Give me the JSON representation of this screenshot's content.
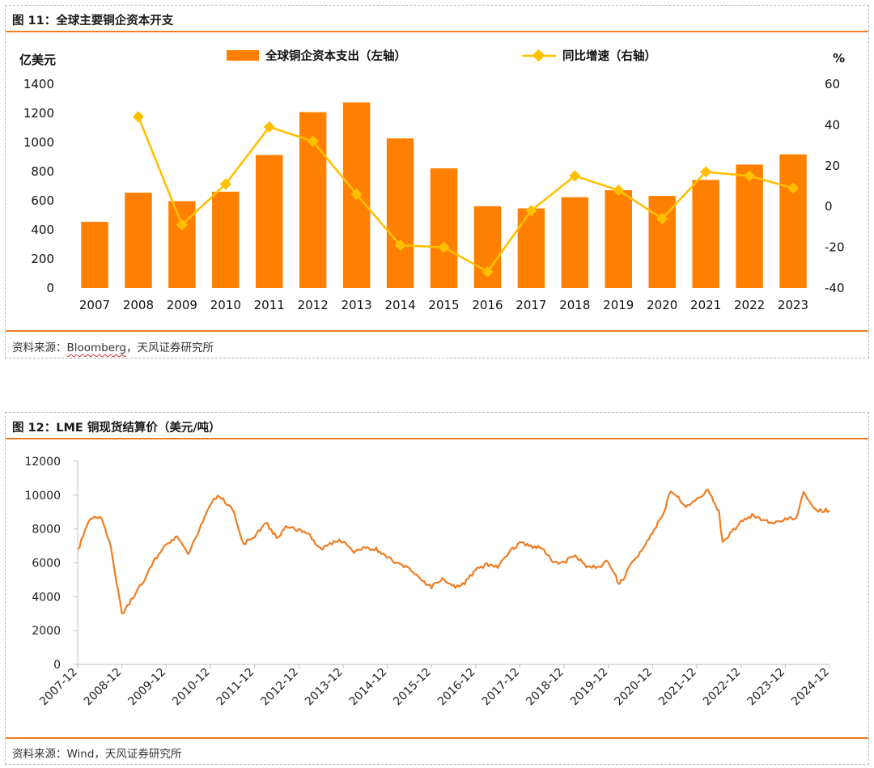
{
  "figure1": {
    "title": "图 11：全球主要铜企资本开支",
    "source_prefix": "资料来源：",
    "source_name": "Bloomberg",
    "source_suffix": "，天风证券研究所",
    "chart_data": {
      "type": "bar",
      "categories": [
        "2007",
        "2008",
        "2009",
        "2010",
        "2011",
        "2012",
        "2013",
        "2014",
        "2015",
        "2016",
        "2017",
        "2018",
        "2019",
        "2020",
        "2021",
        "2022",
        "2023"
      ],
      "series": [
        {
          "name": "全球铜企资本支出（左轴）",
          "type": "bar",
          "axis": "left",
          "values": [
            455,
            655,
            597,
            662,
            914,
            1208,
            1275,
            1028,
            822,
            562,
            547,
            624,
            672,
            633,
            743,
            848,
            918
          ]
        },
        {
          "name": "同比增速（右轴）",
          "type": "line",
          "axis": "right",
          "values": [
            null,
            44,
            -9,
            11,
            39,
            32,
            6,
            -19,
            -20,
            -32,
            -2,
            15,
            8,
            -6,
            17,
            15,
            9
          ]
        }
      ],
      "ylabel_left": "亿美元",
      "ylabel_right": "%",
      "ylim_left": [
        0,
        1400
      ],
      "ylim_right": [
        -40,
        60
      ],
      "yticks_left": [
        "0",
        "200",
        "400",
        "600",
        "800",
        "1000",
        "1200",
        "1400"
      ],
      "yticks_right": [
        "-40",
        "-20",
        "0",
        "20",
        "40",
        "60"
      ],
      "legend": "top",
      "grid": false,
      "colors": {
        "bar": "#ff8000",
        "line": "#ffc000"
      }
    }
  },
  "figure2": {
    "title": "图 12：LME 铜现货结算价（美元/吨）",
    "source": "资料来源：Wind，天风证券研究所",
    "chart_data": {
      "type": "line",
      "x": [
        "2007-12",
        "2008-03",
        "2008-06",
        "2008-09",
        "2008-12",
        "2009-03",
        "2009-06",
        "2009-09",
        "2009-12",
        "2010-03",
        "2010-06",
        "2010-09",
        "2010-12",
        "2011-02",
        "2011-06",
        "2011-09",
        "2011-12",
        "2012-03",
        "2012-06",
        "2012-09",
        "2012-12",
        "2013-03",
        "2013-06",
        "2013-09",
        "2013-12",
        "2014-03",
        "2014-06",
        "2014-09",
        "2014-12",
        "2015-03",
        "2015-06",
        "2015-09",
        "2015-12",
        "2016-03",
        "2016-06",
        "2016-09",
        "2016-12",
        "2017-03",
        "2017-06",
        "2017-09",
        "2017-12",
        "2018-03",
        "2018-06",
        "2018-09",
        "2018-12",
        "2019-03",
        "2019-06",
        "2019-09",
        "2019-12",
        "2020-03",
        "2020-06",
        "2020-09",
        "2020-12",
        "2021-03",
        "2021-05",
        "2021-09",
        "2021-12",
        "2022-03",
        "2022-06",
        "2022-07",
        "2022-09",
        "2022-12",
        "2023-03",
        "2023-06",
        "2023-09",
        "2023-12",
        "2024-03",
        "2024-05",
        "2024-08",
        "2024-12"
      ],
      "series": [
        {
          "name": "",
          "values": [
            6700,
            8500,
            8800,
            7000,
            2900,
            4000,
            5000,
            6200,
            7100,
            7500,
            6500,
            8000,
            9500,
            10000,
            9200,
            7100,
            7600,
            8400,
            7500,
            8200,
            7900,
            7600,
            6800,
            7200,
            7300,
            6600,
            6900,
            6800,
            6300,
            5900,
            5700,
            5000,
            4600,
            5000,
            4600,
            4800,
            5600,
            5900,
            5700,
            6600,
            7200,
            7000,
            6900,
            6100,
            6000,
            6500,
            5800,
            5700,
            6100,
            4700,
            5800,
            6800,
            7800,
            9000,
            10300,
            9400,
            9700,
            10400,
            9000,
            7200,
            7700,
            8400,
            8800,
            8500,
            8300,
            8600,
            8700,
            10100,
            9100,
            9100
          ]
        }
      ],
      "xticks": [
        "2007-12",
        "2008-12",
        "2009-12",
        "2010-12",
        "2011-12",
        "2012-12",
        "2013-12",
        "2014-12",
        "2015-12",
        "2016-12",
        "2017-12",
        "2018-12",
        "2019-12",
        "2020-12",
        "2021-12",
        "2022-12",
        "2023-12",
        "2024-12"
      ],
      "yticks": [
        "0",
        "2000",
        "4000",
        "6000",
        "8000",
        "10000",
        "12000"
      ],
      "ylim": [
        0,
        12000
      ],
      "grid": false,
      "colors": {
        "line": "#ee7d23"
      }
    }
  }
}
